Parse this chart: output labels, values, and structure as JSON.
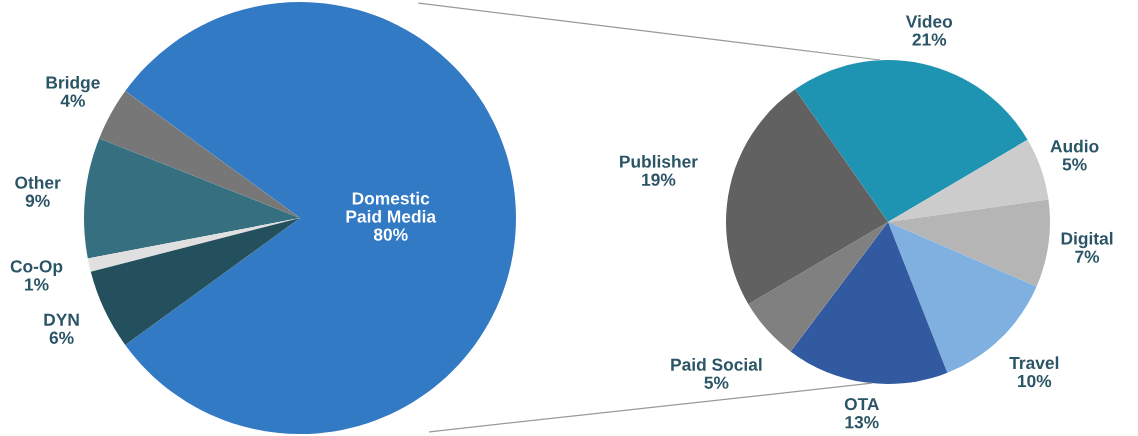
{
  "chart_data": [
    {
      "type": "pie",
      "categories": [
        "Domestic\nPaid Media",
        "Bridge",
        "Other",
        "Co-Op",
        "DYN"
      ],
      "values": [
        80,
        4,
        9,
        1,
        6
      ],
      "value_labels": [
        "80%",
        "4%",
        "9%",
        "1%",
        "6%"
      ],
      "colors": [
        "#337ac4",
        "#777777",
        "#356f80",
        "#e0e0e0",
        "#24505e"
      ]
    },
    {
      "type": "pie",
      "categories": [
        "Video",
        "Audio",
        "Digital",
        "Travel",
        "OTA",
        "Paid Social",
        "Publisher"
      ],
      "values": [
        21,
        5,
        7,
        10,
        13,
        5,
        19
      ],
      "value_labels": [
        "21%",
        "5%",
        "7%",
        "10%",
        "13%",
        "5%",
        "19%"
      ],
      "colors": [
        "#1e93b2",
        "#cccccc",
        "#b5b5b5",
        "#7fb0df",
        "#325aa0",
        "#808080",
        "#616161"
      ]
    }
  ]
}
